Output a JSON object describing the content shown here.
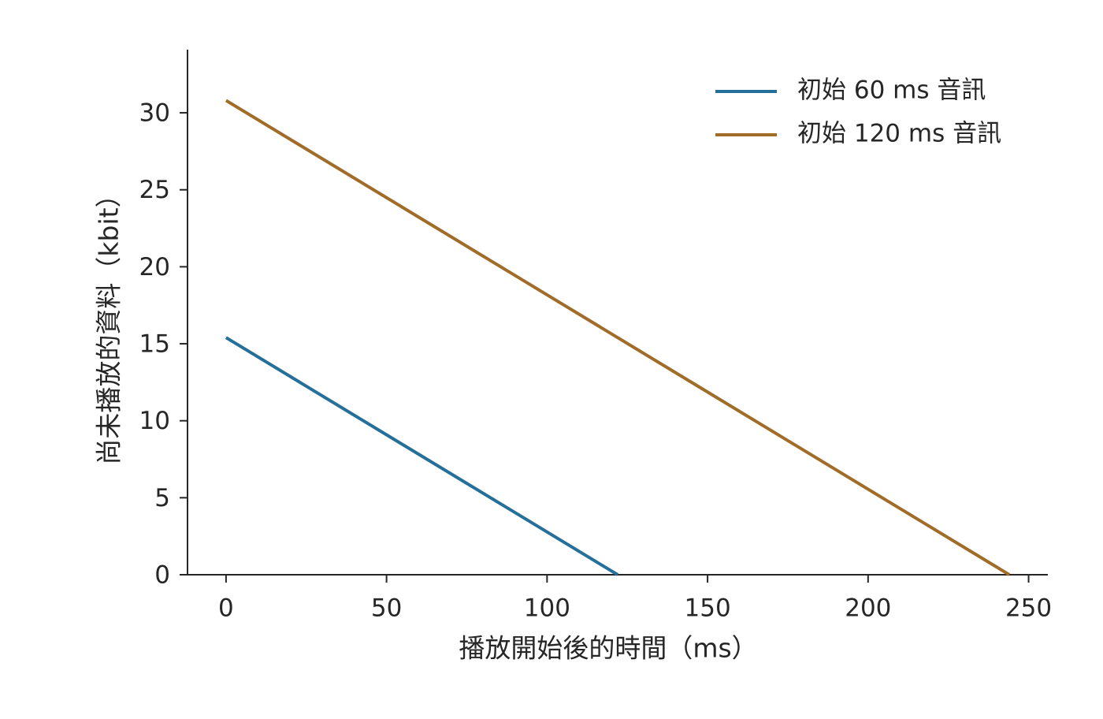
{
  "chart_data": {
    "type": "line",
    "x_label": "播放開始後的時間（ms）",
    "y_label": "尚未播放的資料（kbit）",
    "series": [
      {
        "name": "初始 60 ms 音訊",
        "color": "#24709a",
        "x": [
          0,
          122
        ],
        "values": [
          15.4,
          0
        ]
      },
      {
        "name": "初始 120 ms 音訊",
        "color": "#a06c28",
        "x": [
          0,
          244
        ],
        "values": [
          30.8,
          0
        ]
      }
    ],
    "xlim": [
      -12,
      256
    ],
    "ylim": [
      0,
      34.1
    ],
    "xticks": [
      0,
      50,
      100,
      150,
      200,
      250
    ],
    "yticks": [
      0,
      5,
      10,
      15,
      20,
      25,
      30
    ],
    "grid": false,
    "legend": "upper right"
  }
}
